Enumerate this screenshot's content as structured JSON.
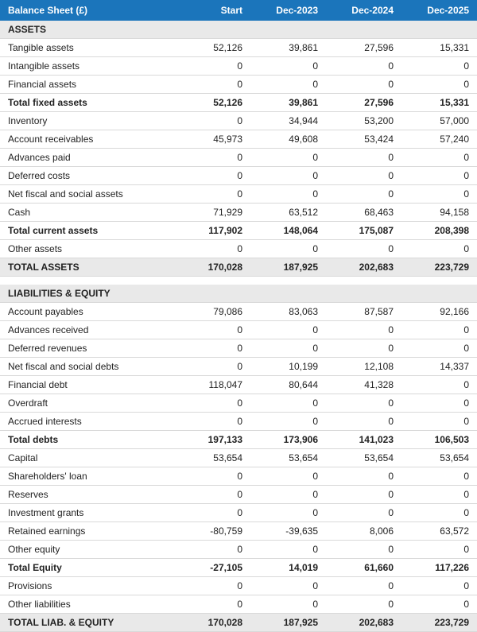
{
  "table": {
    "header_bg": "#1b75bb",
    "header_fg": "#ffffff",
    "section_bg": "#e9e9e9",
    "border_color": "#d9d9d9",
    "columns": [
      "Balance Sheet (£)",
      "Start",
      "Dec-2023",
      "Dec-2024",
      "Dec-2025"
    ],
    "rows": [
      {
        "type": "section",
        "label": "ASSETS"
      },
      {
        "type": "line",
        "label": "Tangible assets",
        "v": [
          "52,126",
          "39,861",
          "27,596",
          "15,331"
        ]
      },
      {
        "type": "line",
        "label": "Intangible assets",
        "v": [
          "0",
          "0",
          "0",
          "0"
        ]
      },
      {
        "type": "line",
        "label": "Financial assets",
        "v": [
          "0",
          "0",
          "0",
          "0"
        ]
      },
      {
        "type": "subtotal",
        "label": "Total fixed assets",
        "v": [
          "52,126",
          "39,861",
          "27,596",
          "15,331"
        ]
      },
      {
        "type": "line",
        "label": "Inventory",
        "v": [
          "0",
          "34,944",
          "53,200",
          "57,000"
        ]
      },
      {
        "type": "line",
        "label": "Account receivables",
        "v": [
          "45,973",
          "49,608",
          "53,424",
          "57,240"
        ]
      },
      {
        "type": "line",
        "label": "Advances paid",
        "v": [
          "0",
          "0",
          "0",
          "0"
        ]
      },
      {
        "type": "line",
        "label": "Deferred costs",
        "v": [
          "0",
          "0",
          "0",
          "0"
        ]
      },
      {
        "type": "line",
        "label": "Net fiscal and social assets",
        "v": [
          "0",
          "0",
          "0",
          "0"
        ]
      },
      {
        "type": "line",
        "label": "Cash",
        "v": [
          "71,929",
          "63,512",
          "68,463",
          "94,158"
        ]
      },
      {
        "type": "subtotal",
        "label": "Total current assets",
        "v": [
          "117,902",
          "148,064",
          "175,087",
          "208,398"
        ]
      },
      {
        "type": "line",
        "label": "Other assets",
        "v": [
          "0",
          "0",
          "0",
          "0"
        ]
      },
      {
        "type": "grand",
        "label": "TOTAL ASSETS",
        "v": [
          "170,028",
          "187,925",
          "202,683",
          "223,729"
        ]
      },
      {
        "type": "spacer"
      },
      {
        "type": "section",
        "label": "LIABILITIES & EQUITY"
      },
      {
        "type": "line",
        "label": "Account payables",
        "v": [
          "79,086",
          "83,063",
          "87,587",
          "92,166"
        ]
      },
      {
        "type": "line",
        "label": "Advances received",
        "v": [
          "0",
          "0",
          "0",
          "0"
        ]
      },
      {
        "type": "line",
        "label": "Deferred revenues",
        "v": [
          "0",
          "0",
          "0",
          "0"
        ]
      },
      {
        "type": "line",
        "label": "Net fiscal and social debts",
        "v": [
          "0",
          "10,199",
          "12,108",
          "14,337"
        ]
      },
      {
        "type": "line",
        "label": "Financial debt",
        "v": [
          "118,047",
          "80,644",
          "41,328",
          "0"
        ]
      },
      {
        "type": "line",
        "label": "Overdraft",
        "v": [
          "0",
          "0",
          "0",
          "0"
        ]
      },
      {
        "type": "line",
        "label": "Accrued interests",
        "v": [
          "0",
          "0",
          "0",
          "0"
        ]
      },
      {
        "type": "subtotal",
        "label": "Total debts",
        "v": [
          "197,133",
          "173,906",
          "141,023",
          "106,503"
        ]
      },
      {
        "type": "line",
        "label": "Capital",
        "v": [
          "53,654",
          "53,654",
          "53,654",
          "53,654"
        ]
      },
      {
        "type": "line",
        "label": "Shareholders' loan",
        "v": [
          "0",
          "0",
          "0",
          "0"
        ]
      },
      {
        "type": "line",
        "label": "Reserves",
        "v": [
          "0",
          "0",
          "0",
          "0"
        ]
      },
      {
        "type": "line",
        "label": "Investment grants",
        "v": [
          "0",
          "0",
          "0",
          "0"
        ]
      },
      {
        "type": "line",
        "label": "Retained earnings",
        "v": [
          "-80,759",
          "-39,635",
          "8,006",
          "63,572"
        ]
      },
      {
        "type": "line",
        "label": "Other equity",
        "v": [
          "0",
          "0",
          "0",
          "0"
        ]
      },
      {
        "type": "subtotal",
        "label": "Total Equity",
        "v": [
          "-27,105",
          "14,019",
          "61,660",
          "117,226"
        ]
      },
      {
        "type": "line",
        "label": "Provisions",
        "v": [
          "0",
          "0",
          "0",
          "0"
        ]
      },
      {
        "type": "line",
        "label": "Other liabilities",
        "v": [
          "0",
          "0",
          "0",
          "0"
        ]
      },
      {
        "type": "grand",
        "label": "TOTAL LIAB. & EQUITY",
        "v": [
          "170,028",
          "187,925",
          "202,683",
          "223,729"
        ]
      }
    ]
  }
}
